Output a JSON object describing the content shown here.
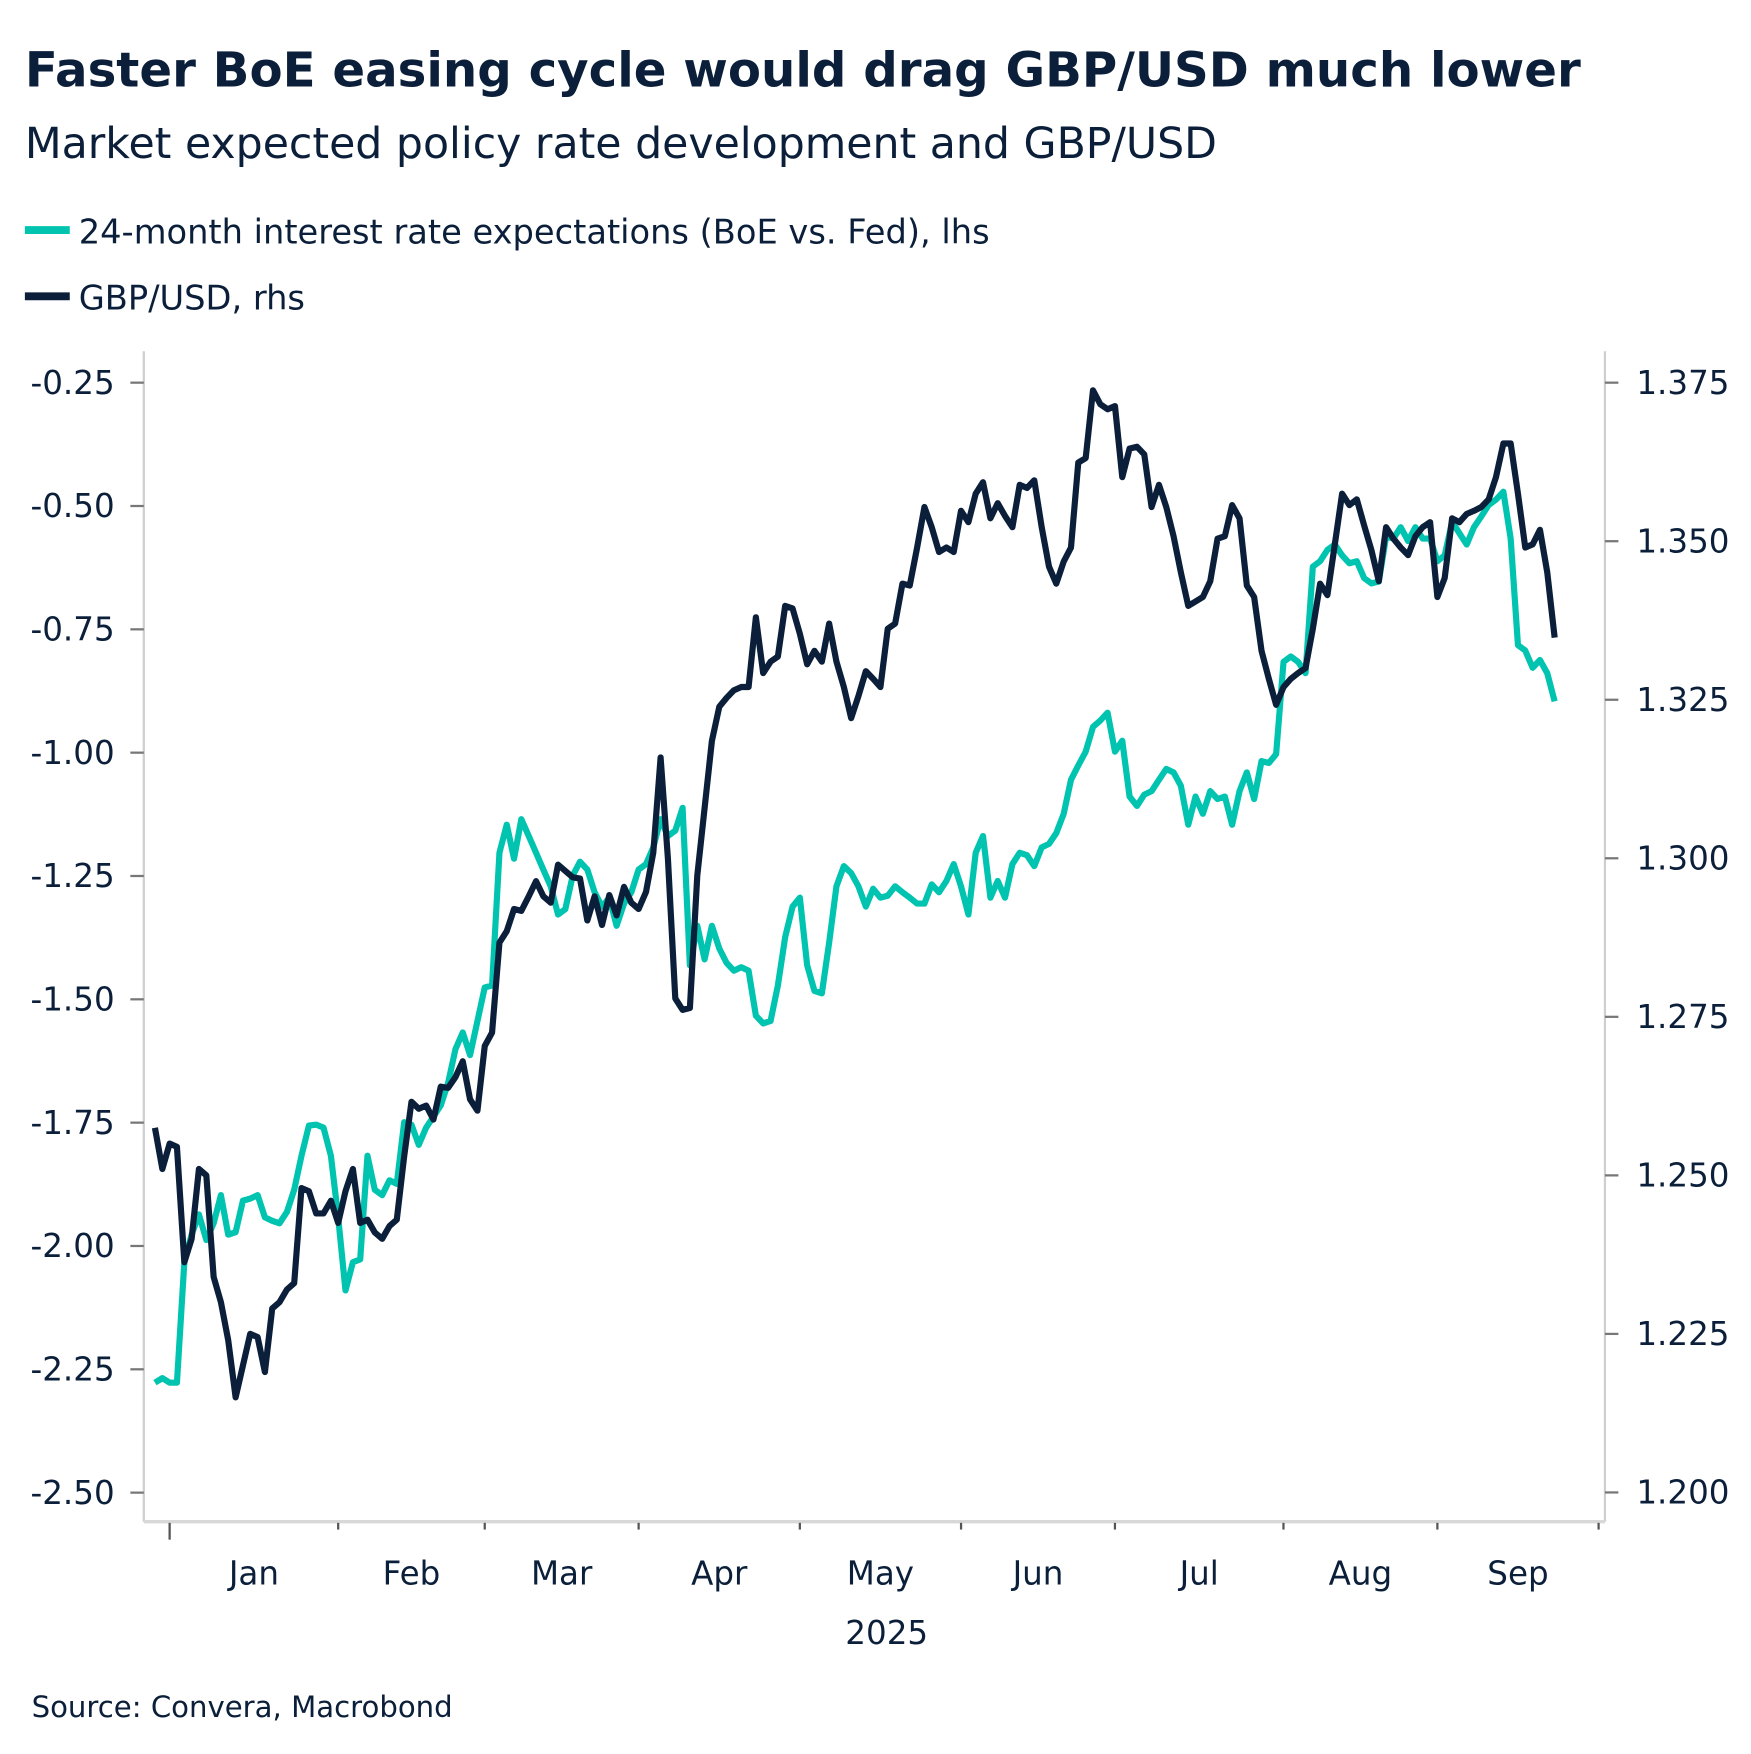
{
  "chart_data": {
    "type": "line",
    "title": "Faster BoE easing cycle would drag GBP/USD much lower",
    "subtitle": "Market expected policy rate development and GBP/USD",
    "source": "Source: Convera, Macrobond",
    "x_axis": {
      "year_label": "2025",
      "month_labels": [
        "Jan",
        "Feb",
        "Mar",
        "Apr",
        "May",
        "Jun",
        "Jul",
        "Aug",
        "Sep"
      ],
      "month_starts": [
        "2025-01-01",
        "2025-02-01",
        "2025-03-01",
        "2025-04-01",
        "2025-05-01",
        "2025-06-01",
        "2025-07-01",
        "2025-08-01",
        "2025-09-01",
        "2025-10-01"
      ],
      "scale": "business days"
    },
    "y_left": {
      "range": [
        -2.5,
        -0.25
      ],
      "ticks": [
        "-0.25",
        "-0.50",
        "-0.75",
        "-1.00",
        "-1.25",
        "-1.50",
        "-1.75",
        "-2.00",
        "-2.25",
        "-2.50"
      ]
    },
    "y_right": {
      "range": [
        1.2,
        1.375
      ],
      "ticks": [
        "1.375",
        "1.350",
        "1.325",
        "1.300",
        "1.275",
        "1.250",
        "1.225",
        "1.200"
      ]
    },
    "grid": false,
    "legend_placement": "top-left",
    "dates": [
      "2024-12-30",
      "2024-12-31",
      "2025-01-01",
      "2025-01-02",
      "2025-01-03",
      "2025-01-06",
      "2025-01-07",
      "2025-01-08",
      "2025-01-09",
      "2025-01-10",
      "2025-01-13",
      "2025-01-14",
      "2025-01-15",
      "2025-01-16",
      "2025-01-17",
      "2025-01-20",
      "2025-01-21",
      "2025-01-22",
      "2025-01-23",
      "2025-01-24",
      "2025-01-27",
      "2025-01-28",
      "2025-01-29",
      "2025-01-30",
      "2025-01-31",
      "2025-02-03",
      "2025-02-04",
      "2025-02-05",
      "2025-02-06",
      "2025-02-07",
      "2025-02-10",
      "2025-02-11",
      "2025-02-12",
      "2025-02-13",
      "2025-02-14",
      "2025-02-17",
      "2025-02-18",
      "2025-02-19",
      "2025-02-20",
      "2025-02-21",
      "2025-02-24",
      "2025-02-25",
      "2025-02-26",
      "2025-02-27",
      "2025-02-28",
      "2025-03-03",
      "2025-03-04",
      "2025-03-05",
      "2025-03-06",
      "2025-03-07",
      "2025-03-10",
      "2025-03-11",
      "2025-03-12",
      "2025-03-13",
      "2025-03-14",
      "2025-03-17",
      "2025-03-18",
      "2025-03-19",
      "2025-03-20",
      "2025-03-21",
      "2025-03-24",
      "2025-03-25",
      "2025-03-26",
      "2025-03-27",
      "2025-03-28",
      "2025-03-31",
      "2025-04-01",
      "2025-04-02",
      "2025-04-03",
      "2025-04-04",
      "2025-04-07",
      "2025-04-08",
      "2025-04-09",
      "2025-04-10",
      "2025-04-11",
      "2025-04-14",
      "2025-04-15",
      "2025-04-16",
      "2025-04-17",
      "2025-04-18",
      "2025-04-21",
      "2025-04-22",
      "2025-04-23",
      "2025-04-24",
      "2025-04-25",
      "2025-04-28",
      "2025-04-29",
      "2025-04-30",
      "2025-05-01",
      "2025-05-02",
      "2025-05-05",
      "2025-05-06",
      "2025-05-07",
      "2025-05-08",
      "2025-05-09",
      "2025-05-12",
      "2025-05-13",
      "2025-05-14",
      "2025-05-15",
      "2025-05-16",
      "2025-05-19",
      "2025-05-20",
      "2025-05-21",
      "2025-05-22",
      "2025-05-23",
      "2025-05-26",
      "2025-05-27",
      "2025-05-28",
      "2025-05-29",
      "2025-05-30",
      "2025-06-02",
      "2025-06-03",
      "2025-06-04",
      "2025-06-05",
      "2025-06-06",
      "2025-06-09",
      "2025-06-10",
      "2025-06-11",
      "2025-06-12",
      "2025-06-13",
      "2025-06-16",
      "2025-06-17",
      "2025-06-18",
      "2025-06-19",
      "2025-06-20",
      "2025-06-23",
      "2025-06-24",
      "2025-06-25",
      "2025-06-26",
      "2025-06-27",
      "2025-06-30",
      "2025-07-01",
      "2025-07-02",
      "2025-07-03",
      "2025-07-04",
      "2025-07-07",
      "2025-07-08",
      "2025-07-09",
      "2025-07-10",
      "2025-07-11",
      "2025-07-14",
      "2025-07-15",
      "2025-07-16",
      "2025-07-17",
      "2025-07-18",
      "2025-07-21",
      "2025-07-22",
      "2025-07-23",
      "2025-07-24",
      "2025-07-25",
      "2025-07-28",
      "2025-07-29",
      "2025-07-30",
      "2025-07-31",
      "2025-08-01",
      "2025-08-04",
      "2025-08-05",
      "2025-08-06",
      "2025-08-07",
      "2025-08-08",
      "2025-08-11",
      "2025-08-12",
      "2025-08-13",
      "2025-08-14",
      "2025-08-15",
      "2025-08-18",
      "2025-08-19",
      "2025-08-20",
      "2025-08-21",
      "2025-08-22",
      "2025-08-25",
      "2025-08-26",
      "2025-08-27",
      "2025-08-28",
      "2025-08-29",
      "2025-09-01",
      "2025-09-02",
      "2025-09-03",
      "2025-09-04",
      "2025-09-05",
      "2025-09-08",
      "2025-09-09",
      "2025-09-10",
      "2025-09-11",
      "2025-09-12",
      "2025-09-15",
      "2025-09-16",
      "2025-09-17",
      "2025-09-18",
      "2025-09-19",
      "2025-09-22",
      "2025-09-23"
    ],
    "series": [
      {
        "name": "24-month interest rate expectations (BoE vs. Fed), lhs",
        "axis": "left",
        "color": "#00c4b0",
        "values": [
          -2.277,
          -2.268,
          -2.277,
          -2.277,
          -2.033,
          -1.977,
          -1.936,
          -1.988,
          -1.954,
          -1.897,
          -1.977,
          -1.972,
          -1.908,
          -1.904,
          -1.897,
          -1.942,
          -1.949,
          -1.954,
          -1.931,
          -1.886,
          -1.817,
          -1.756,
          -1.754,
          -1.76,
          -1.817,
          -1.942,
          -2.09,
          -2.033,
          -2.027,
          -1.817,
          -1.886,
          -1.897,
          -1.867,
          -1.874,
          -1.749,
          -1.754,
          -1.795,
          -1.76,
          -1.738,
          -1.715,
          -1.67,
          -1.601,
          -1.567,
          -1.613,
          -1.544,
          -1.476,
          -1.472,
          -1.203,
          -1.146,
          -1.215,
          -1.135,
          -1.169,
          -1.203,
          -1.237,
          -1.271,
          -1.328,
          -1.317,
          -1.249,
          -1.221,
          -1.237,
          -1.283,
          -1.312,
          -1.294,
          -1.351,
          -1.306,
          -1.283,
          -1.237,
          -1.226,
          -1.192,
          -1.135,
          -1.169,
          -1.158,
          -1.112,
          -1.431,
          -1.351,
          -1.419,
          -1.351,
          -1.397,
          -1.426,
          -1.442,
          -1.435,
          -1.442,
          -1.533,
          -1.549,
          -1.544,
          -1.472,
          -1.374,
          -1.312,
          -1.294,
          -1.431,
          -1.483,
          -1.488,
          -1.385,
          -1.271,
          -1.23,
          -1.244,
          -1.271,
          -1.312,
          -1.276,
          -1.294,
          -1.29,
          -1.271,
          -1.283,
          -1.294,
          -1.306,
          -1.306,
          -1.267,
          -1.283,
          -1.26,
          -1.226,
          -1.271,
          -1.328,
          -1.203,
          -1.169,
          -1.294,
          -1.26,
          -1.294,
          -1.226,
          -1.203,
          -1.208,
          -1.23,
          -1.192,
          -1.185,
          -1.163,
          -1.124,
          -1.055,
          -1.026,
          -0.998,
          -0.948,
          -0.935,
          -0.919,
          -0.998,
          -0.976,
          -1.089,
          -1.108,
          -1.085,
          -1.078,
          -1.055,
          -1.033,
          -1.04,
          -1.067,
          -1.146,
          -1.089,
          -1.124,
          -1.078,
          -1.094,
          -1.089,
          -1.146,
          -1.078,
          -1.04,
          -1.094,
          -1.017,
          -1.021,
          -1.003,
          -0.816,
          -0.805,
          -0.816,
          -0.839,
          -0.623,
          -0.612,
          -0.589,
          -0.578,
          -0.6,
          -0.616,
          -0.612,
          -0.646,
          -0.657,
          -0.653,
          -0.562,
          -0.566,
          -0.543,
          -0.571,
          -0.543,
          -0.566,
          -0.566,
          -0.612,
          -0.6,
          -0.532,
          -0.555,
          -0.578,
          -0.543,
          -0.521,
          -0.498,
          -0.487,
          -0.471,
          -0.566,
          -0.782,
          -0.793,
          -0.828,
          -0.812,
          -0.839,
          -0.896
        ]
      },
      {
        "name": "GBP/USD, rhs",
        "axis": "right",
        "color": "#0b1f3a",
        "values": [
          1.2575,
          1.251,
          1.255,
          1.2545,
          1.2363,
          1.24,
          1.251,
          1.25,
          1.234,
          1.23,
          1.224,
          1.215,
          1.22,
          1.225,
          1.2245,
          1.219,
          1.229,
          1.23,
          1.232,
          1.233,
          1.248,
          1.2475,
          1.244,
          1.244,
          1.246,
          1.2425,
          1.2475,
          1.251,
          1.2425,
          1.243,
          1.241,
          1.24,
          1.242,
          1.243,
          1.253,
          1.2616,
          1.2605,
          1.261,
          1.2588,
          1.264,
          1.2638,
          1.2655,
          1.268,
          1.262,
          1.2602,
          1.2704,
          1.2725,
          1.2867,
          1.2885,
          1.292,
          1.2917,
          1.294,
          1.2964,
          1.294,
          1.293,
          1.299,
          1.298,
          1.297,
          1.2968,
          1.2902,
          1.294,
          1.2895,
          1.2942,
          1.291,
          1.2955,
          1.293,
          1.292,
          1.2947,
          1.3009,
          1.3159,
          1.3,
          1.2779,
          1.2761,
          1.2764,
          1.2973,
          1.3079,
          1.3185,
          1.3239,
          1.3253,
          1.3265,
          1.327,
          1.327,
          1.338,
          1.3292,
          1.331,
          1.3318,
          1.3398,
          1.3394,
          1.3354,
          1.3306,
          1.3327,
          1.331,
          1.337,
          1.331,
          1.327,
          1.3221,
          1.3256,
          1.3295,
          1.3283,
          1.327,
          1.3362,
          1.337,
          1.3433,
          1.343,
          1.349,
          1.3554,
          1.3522,
          1.3483,
          1.349,
          1.3483,
          1.3548,
          1.353,
          1.3575,
          1.3593,
          1.3536,
          1.356,
          1.354,
          1.3522,
          1.3589,
          1.3584,
          1.3596,
          1.3522,
          1.346,
          1.3433,
          1.3468,
          1.349,
          1.3624,
          1.3631,
          1.3738,
          1.3716,
          1.3708,
          1.3713,
          1.3601,
          1.3646,
          1.3649,
          1.3637,
          1.3554,
          1.3589,
          1.3554,
          1.3508,
          1.3451,
          1.3398,
          1.3405,
          1.3412,
          1.3437,
          1.3504,
          1.3508,
          1.3557,
          1.3536,
          1.343,
          1.3412,
          1.3327,
          1.3283,
          1.3242,
          1.327,
          1.3283,
          1.3292,
          1.33,
          1.3362,
          1.3433,
          1.3415,
          1.3495,
          1.3575,
          1.3557,
          1.3566,
          1.3525,
          1.3486,
          1.3437,
          1.3522,
          1.3504,
          1.349,
          1.3478,
          1.3508,
          1.3522,
          1.353,
          1.3412,
          1.3442,
          1.3536,
          1.353,
          1.3543,
          1.3548,
          1.3554,
          1.3566,
          1.3601,
          1.3654,
          1.3654,
          1.3575,
          1.349,
          1.3495,
          1.3518,
          1.3451,
          1.3348
        ]
      }
    ]
  }
}
